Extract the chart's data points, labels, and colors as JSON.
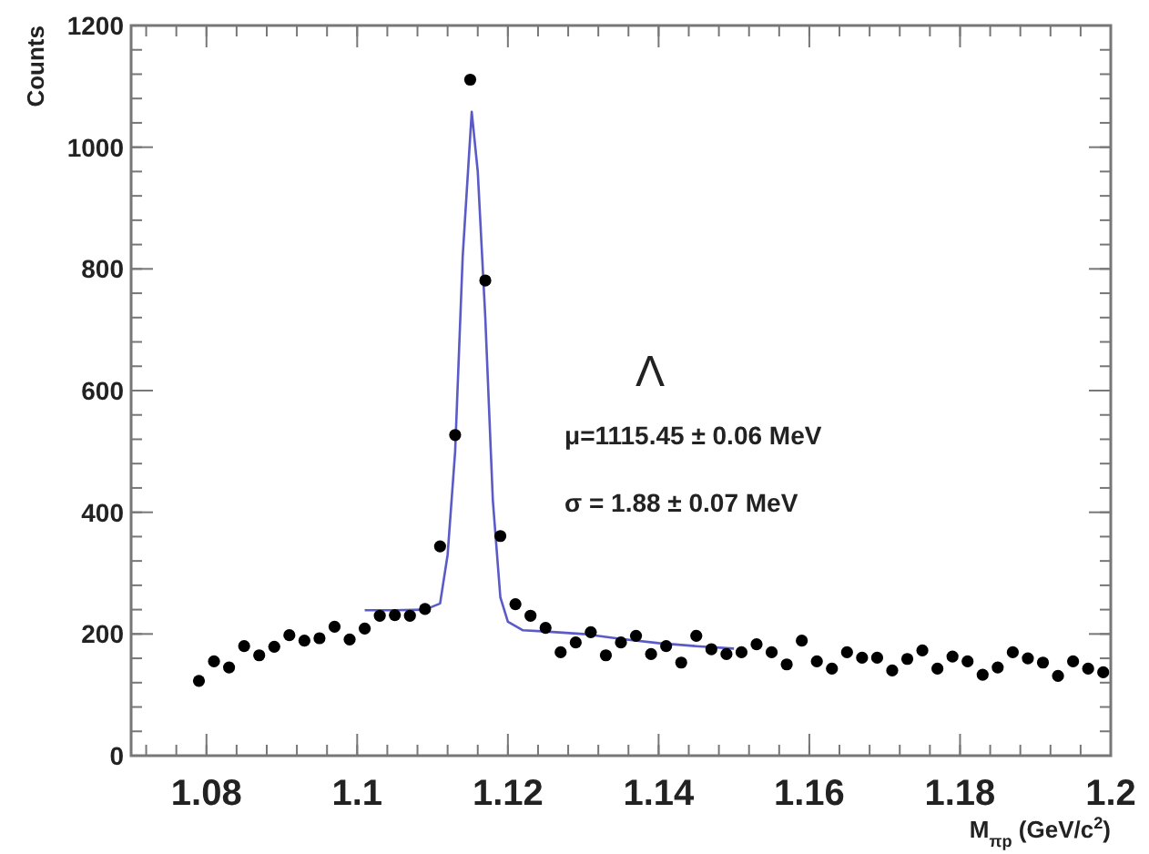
{
  "chart_data": {
    "type": "scatter",
    "xlabel": "M$_{πp}$ (GeV/c$^{2}$)",
    "ylabel": "Counts",
    "xlim": [
      1.07,
      1.2
    ],
    "xticks": [
      {
        "value": 1.08,
        "label": "1.08"
      },
      {
        "value": 1.1,
        "label": "1.1"
      },
      {
        "value": 1.12,
        "label": "1.12"
      },
      {
        "value": 1.14,
        "label": "1.14"
      },
      {
        "value": 1.16,
        "label": "1.16"
      },
      {
        "value": 1.18,
        "label": "1.18"
      },
      {
        "value": 1.2,
        "label": "1.2"
      }
    ],
    "ylim": [
      0,
      1200
    ],
    "yticks": [
      0,
      200,
      400,
      600,
      800,
      1000,
      1200
    ],
    "grid": false,
    "annotations": [
      "Λ",
      "μ=1115.45 ± 0.06 MeV",
      "σ = 1.88 ± 0.07 MeV"
    ],
    "series": [
      {
        "type": "line",
        "color": "#5a5ac8",
        "marker": "none",
        "line_style": "solid",
        "x": [
          1.101,
          1.105,
          1.109,
          1.111,
          1.112,
          1.113,
          1.114,
          1.1152,
          1.116,
          1.117,
          1.118,
          1.119,
          1.12,
          1.122,
          1.125,
          1.13,
          1.135,
          1.14,
          1.145,
          1.15
        ],
        "values": [
          239,
          239,
          240,
          250,
          330,
          500,
          820,
          1058,
          960,
          720,
          420,
          260,
          220,
          206,
          204,
          200,
          192,
          185,
          180,
          176
        ]
      },
      {
        "color": "#000000",
        "marker": "circle",
        "x": [
          1.079,
          1.081,
          1.083,
          1.085,
          1.087,
          1.089,
          1.091,
          1.093,
          1.095,
          1.097,
          1.099,
          1.101,
          1.103,
          1.105,
          1.107,
          1.109,
          1.111,
          1.113,
          1.115,
          1.117,
          1.119,
          1.121,
          1.123,
          1.125,
          1.127,
          1.129,
          1.131,
          1.133,
          1.135,
          1.137,
          1.139,
          1.141,
          1.143,
          1.145,
          1.147,
          1.149,
          1.151,
          1.153,
          1.155,
          1.157,
          1.159,
          1.161,
          1.163,
          1.165,
          1.167,
          1.169,
          1.171,
          1.173,
          1.175,
          1.177,
          1.179,
          1.181,
          1.183,
          1.185,
          1.187,
          1.189,
          1.191,
          1.193,
          1.195,
          1.197,
          1.199
        ],
        "values": [
          123,
          155,
          145,
          180,
          165,
          179,
          198,
          189,
          193,
          212,
          191,
          209,
          230,
          231,
          230,
          241,
          344,
          527,
          1111,
          781,
          361,
          249,
          230,
          210,
          170,
          186,
          203,
          165,
          186,
          197,
          167,
          180,
          153,
          197,
          175,
          167,
          170,
          183,
          170,
          150,
          189,
          155,
          143,
          170,
          161,
          161,
          140,
          159,
          173,
          143,
          163,
          155,
          133,
          145,
          170,
          160,
          153,
          131,
          155,
          143,
          137
        ]
      }
    ]
  }
}
